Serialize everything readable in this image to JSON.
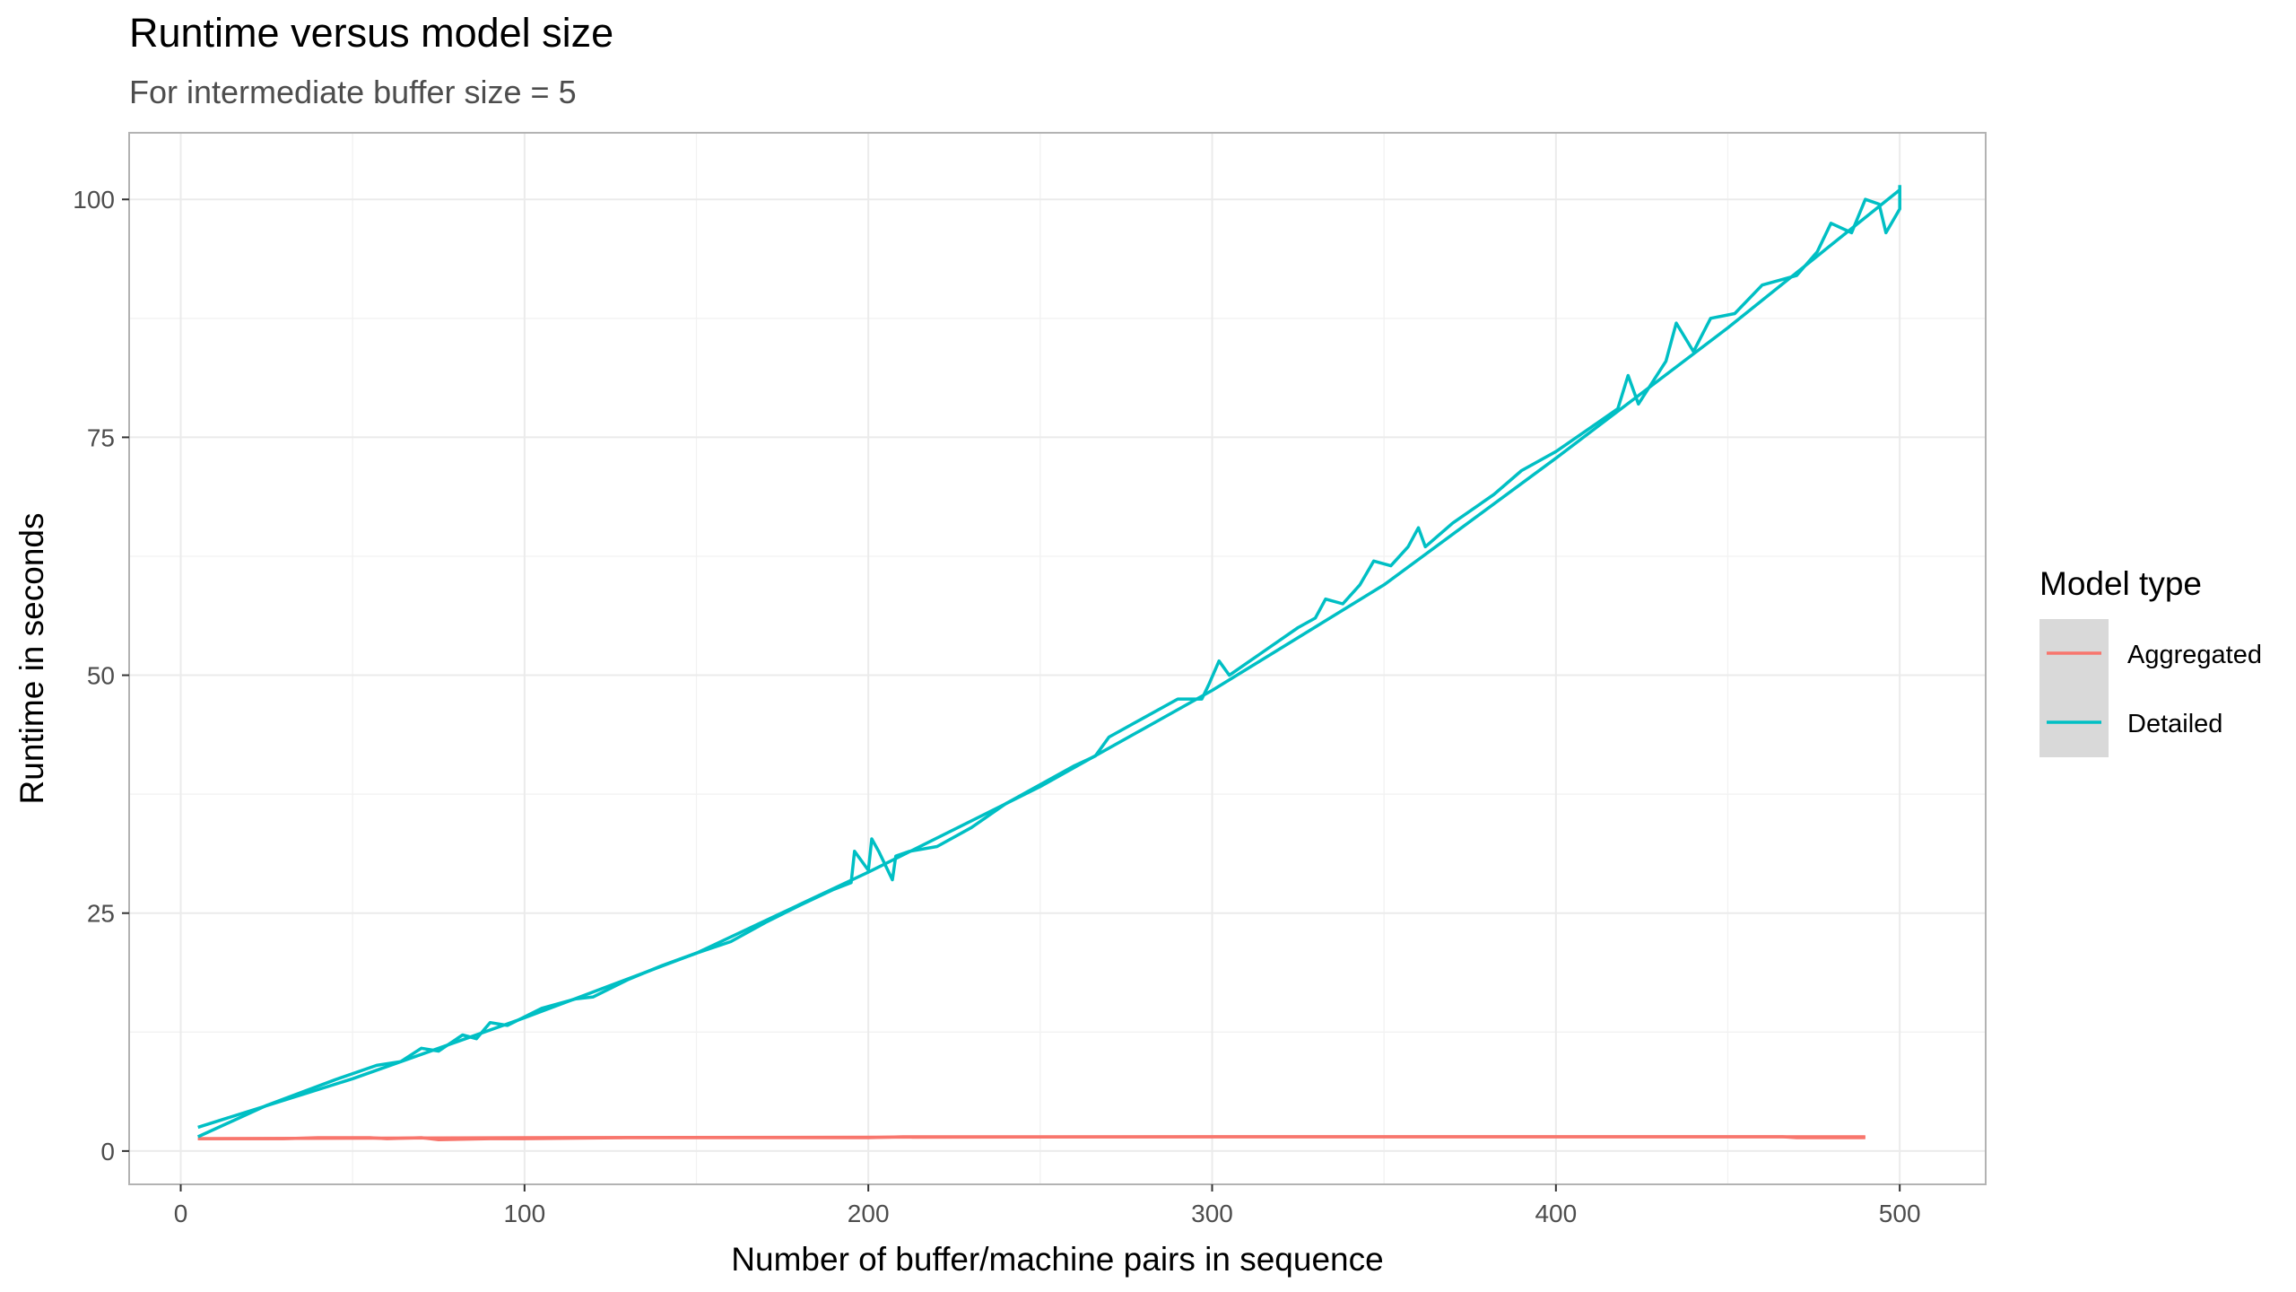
{
  "chart_data": {
    "type": "line",
    "title": "Runtime versus model size",
    "subtitle": "For intermediate buffer size = 5",
    "xlabel": "Number of buffer/machine pairs in sequence",
    "ylabel": "Runtime in seconds",
    "xlim": [
      -15,
      525
    ],
    "ylim": [
      -3.5,
      107
    ],
    "x_ticks": [
      0,
      100,
      200,
      300,
      400,
      500
    ],
    "y_ticks": [
      0,
      25,
      50,
      75,
      100
    ],
    "x_tick_labels": [
      "0",
      "100",
      "200",
      "300",
      "400",
      "500"
    ],
    "y_tick_labels": [
      "0",
      "25",
      "50",
      "75",
      "100"
    ],
    "grid": true,
    "legend_title": "Model type",
    "legend_position": "right",
    "series": [
      {
        "name": "Aggregated",
        "color": "#F8766D",
        "points": [
          [
            5,
            1.3
          ],
          [
            30,
            1.3
          ],
          [
            40,
            1.4
          ],
          [
            55,
            1.4
          ],
          [
            60,
            1.3
          ],
          [
            70,
            1.4
          ],
          [
            75,
            1.2
          ],
          [
            90,
            1.3
          ],
          [
            100,
            1.3
          ],
          [
            130,
            1.4
          ],
          [
            200,
            1.4
          ],
          [
            210,
            1.5
          ],
          [
            300,
            1.5
          ],
          [
            400,
            1.5
          ],
          [
            466,
            1.5
          ],
          [
            470,
            1.4
          ],
          [
            490,
            1.4
          ]
        ]
      },
      {
        "name": "Detailed",
        "color": "#00BFC4",
        "points": [
          [
            5,
            1.5
          ],
          [
            25,
            4.8
          ],
          [
            45,
            7.5
          ],
          [
            57,
            9.0
          ],
          [
            64,
            9.4
          ],
          [
            70,
            10.8
          ],
          [
            75,
            10.5
          ],
          [
            82,
            12.2
          ],
          [
            86,
            11.8
          ],
          [
            90,
            13.5
          ],
          [
            95,
            13.2
          ],
          [
            105,
            15.0
          ],
          [
            115,
            16.0
          ],
          [
            120,
            16.2
          ],
          [
            130,
            18.0
          ],
          [
            140,
            19.5
          ],
          [
            150,
            20.8
          ],
          [
            160,
            22.0
          ],
          [
            170,
            24.0
          ],
          [
            180,
            25.8
          ],
          [
            190,
            27.5
          ],
          [
            195,
            28.2
          ],
          [
            196,
            31.5
          ],
          [
            198,
            30.5
          ],
          [
            200,
            29.5
          ],
          [
            201,
            32.8
          ],
          [
            203,
            31.5
          ],
          [
            207,
            28.5
          ],
          [
            208,
            31.0
          ],
          [
            212,
            31.5
          ],
          [
            220,
            32.0
          ],
          [
            230,
            34.0
          ],
          [
            240,
            36.5
          ],
          [
            250,
            38.5
          ],
          [
            260,
            40.5
          ],
          [
            266,
            41.5
          ],
          [
            270,
            43.5
          ],
          [
            280,
            45.5
          ],
          [
            290,
            47.5
          ],
          [
            297,
            47.5
          ],
          [
            299,
            49.0
          ],
          [
            302,
            51.5
          ],
          [
            305,
            50.0
          ],
          [
            315,
            52.5
          ],
          [
            325,
            55.0
          ],
          [
            330,
            56.0
          ],
          [
            333,
            58.0
          ],
          [
            338,
            57.5
          ],
          [
            343,
            59.5
          ],
          [
            347,
            62.0
          ],
          [
            352,
            61.5
          ],
          [
            357,
            63.5
          ],
          [
            360,
            65.5
          ],
          [
            362,
            63.5
          ],
          [
            370,
            66.0
          ],
          [
            382,
            69.0
          ],
          [
            390,
            71.5
          ],
          [
            400,
            73.5
          ],
          [
            410,
            76.0
          ],
          [
            418,
            78.0
          ],
          [
            421,
            81.5
          ],
          [
            424,
            78.5
          ],
          [
            432,
            83.0
          ],
          [
            435,
            87.0
          ],
          [
            440,
            84.0
          ],
          [
            445,
            87.5
          ],
          [
            452,
            88.0
          ],
          [
            460,
            91.0
          ],
          [
            470,
            92.0
          ],
          [
            476,
            94.5
          ],
          [
            480,
            97.5
          ],
          [
            486,
            96.5
          ],
          [
            490,
            100.0
          ],
          [
            494,
            99.5
          ],
          [
            496,
            96.5
          ],
          [
            500,
            99.0
          ],
          [
            500,
            101.5
          ]
        ]
      }
    ],
    "trend_curves": [
      {
        "name": "Detailed",
        "color": "#00BFC4",
        "points": [
          [
            5,
            2.5
          ],
          [
            50,
            7.6
          ],
          [
            100,
            14.0
          ],
          [
            150,
            20.8
          ],
          [
            200,
            29.3
          ],
          [
            250,
            38.3
          ],
          [
            300,
            48.4
          ],
          [
            350,
            59.5
          ],
          [
            400,
            72.8
          ],
          [
            450,
            86.5
          ],
          [
            500,
            101.0
          ]
        ]
      },
      {
        "name": "Aggregated",
        "color": "#F8766D",
        "points": [
          [
            5,
            1.3
          ],
          [
            100,
            1.4
          ],
          [
            200,
            1.45
          ],
          [
            300,
            1.5
          ],
          [
            400,
            1.5
          ],
          [
            490,
            1.5
          ]
        ]
      }
    ]
  }
}
